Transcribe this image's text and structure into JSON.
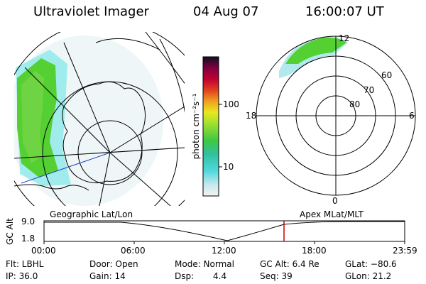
{
  "header": {
    "instrument": "Ultraviolet Imager",
    "date": "04 Aug 07",
    "time": "16:00:07 UT"
  },
  "colorbar": {
    "unit_label": "photon cm⁻²s⁻¹",
    "ticks": [
      "100",
      "10"
    ]
  },
  "apex_plot": {
    "lat_labels": [
      "60",
      "70",
      "80"
    ],
    "mlt_labels": [
      "12",
      "18",
      "6",
      "0"
    ]
  },
  "strip": {
    "left_title": "Geographic Lat/Lon",
    "right_title": "Apex MLat/MLT",
    "axis_label": "GC Alt",
    "y_ticks": [
      "9.0",
      "1.8"
    ],
    "x_ticks": [
      "00:00",
      "06:00",
      "12:00",
      "18:00",
      "23:59"
    ]
  },
  "info": {
    "filter": "Flt: LBHL",
    "door": "Door: Open",
    "mode": "Mode: Normal",
    "gc_alt": "GC Alt: 6.4 Re",
    "glat": "GLat: −80.6",
    "ip": "IP: 36.0",
    "gain": "Gain: 14",
    "dsp_label": "Dsp:",
    "dsp_value": "4.4",
    "seq": "Seq: 39",
    "glon": "GLon: 21.2"
  },
  "colors": {
    "aurora_green": "#4fd430",
    "aurora_cyan": "#2fd0d0",
    "marker_red": "#cc0000",
    "meridian_blue": "#2040c0"
  }
}
